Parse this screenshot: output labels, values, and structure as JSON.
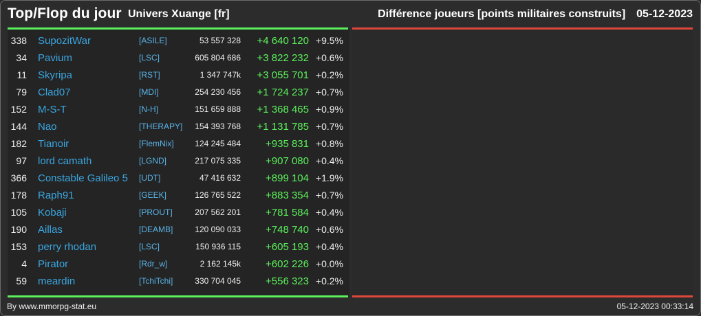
{
  "header": {
    "title": "Top/Flop du jour",
    "server": "Univers Xuange [fr]",
    "metric": "Différence joueurs [points militaires construits]",
    "date": "05-12-2023"
  },
  "colors": {
    "gain": "#5cf05c",
    "loss": "#e0473c",
    "link": "#3aa6e0",
    "background": "#2b2b2b"
  },
  "top_rows": [
    {
      "rank": "338",
      "name": "SupozitWar",
      "alliance": "[ASILE]",
      "points": "53 557 328",
      "diff": "+4 640 120",
      "pct": "+9.5%"
    },
    {
      "rank": "34",
      "name": "Pavium",
      "alliance": "[LSC]",
      "points": "605 804 686",
      "diff": "+3 822 232",
      "pct": "+0.6%"
    },
    {
      "rank": "11",
      "name": "Skyripa",
      "alliance": "[RST]",
      "points": "1 347 747k",
      "diff": "+3 055 701",
      "pct": "+0.2%"
    },
    {
      "rank": "79",
      "name": "Clad07",
      "alliance": "[MDI]",
      "points": "254 230 456",
      "diff": "+1 724 237",
      "pct": "+0.7%"
    },
    {
      "rank": "152",
      "name": "M-S-T",
      "alliance": "[N-H]",
      "points": "151 659 888",
      "diff": "+1 368 465",
      "pct": "+0.9%"
    },
    {
      "rank": "144",
      "name": "Nao",
      "alliance": "[THERAPY]",
      "points": "154 393 768",
      "diff": "+1 131 785",
      "pct": "+0.7%"
    },
    {
      "rank": "182",
      "name": "Tianoir",
      "alliance": "[FlemNix]",
      "points": "124 245 484",
      "diff": "+935 831",
      "pct": "+0.8%"
    },
    {
      "rank": "97",
      "name": "lord camath",
      "alliance": "[LGND]",
      "points": "217 075 335",
      "diff": "+907 080",
      "pct": "+0.4%"
    },
    {
      "rank": "366",
      "name": "Constable Galileo 5",
      "alliance": "[UDT]",
      "points": "47 416 632",
      "diff": "+899 104",
      "pct": "+1.9%"
    },
    {
      "rank": "178",
      "name": "Raph91",
      "alliance": "[GEEK]",
      "points": "126 765 522",
      "diff": "+883 354",
      "pct": "+0.7%"
    },
    {
      "rank": "105",
      "name": "Kobaji",
      "alliance": "[PROUT]",
      "points": "207 562 201",
      "diff": "+781 584",
      "pct": "+0.4%"
    },
    {
      "rank": "190",
      "name": "Aillas",
      "alliance": "[DEAMB]",
      "points": "120 090 033",
      "diff": "+748 740",
      "pct": "+0.6%"
    },
    {
      "rank": "153",
      "name": "perry rhodan",
      "alliance": "[LSC]",
      "points": "150 936 115",
      "diff": "+605 193",
      "pct": "+0.4%"
    },
    {
      "rank": "4",
      "name": "Pirator",
      "alliance": "[Rdr_w]",
      "points": "2 162 145k",
      "diff": "+602 226",
      "pct": "+0.0%"
    },
    {
      "rank": "59",
      "name": "meardin",
      "alliance": "[TchiTchi]",
      "points": "330 704 045",
      "diff": "+556 323",
      "pct": "+0.2%"
    }
  ],
  "footer": {
    "credit": "By www.mmorpg-stat.eu",
    "timestamp": "05-12-2023 00:33:14"
  }
}
